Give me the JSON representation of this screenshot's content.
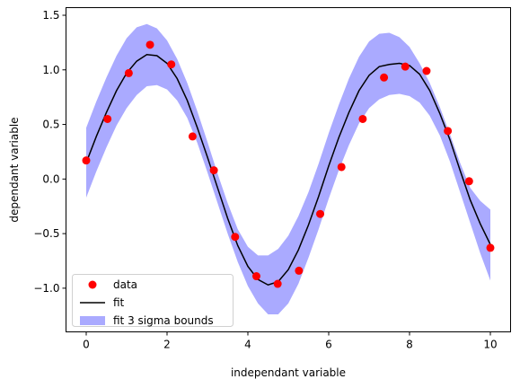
{
  "chart_data": {
    "type": "line",
    "title": "",
    "xlabel": "independant variable",
    "ylabel": "dependant variable",
    "xlim": [
      -0.5,
      10.5
    ],
    "ylim": [
      -1.4,
      1.57
    ],
    "xticks": [
      0,
      2,
      4,
      6,
      8,
      10
    ],
    "xtick_labels": [
      "0",
      "2",
      "4",
      "6",
      "8",
      "10"
    ],
    "yticks": [
      -1.0,
      -0.5,
      0.0,
      0.5,
      1.0,
      1.5
    ],
    "ytick_labels": [
      "−1.0",
      "−0.5",
      "0.0",
      "0.5",
      "1.0",
      "1.5"
    ],
    "grid": false,
    "legend_position": "lower-left",
    "series": [
      {
        "name": "data",
        "kind": "scatter",
        "color": "#ff0000",
        "x": [
          0,
          0.5263,
          1.0526,
          1.5789,
          2.1053,
          2.6316,
          3.1579,
          3.6842,
          4.2105,
          4.7368,
          5.2632,
          5.7895,
          6.3158,
          6.8421,
          7.3684,
          7.8947,
          8.4211,
          8.9474,
          9.4737,
          10.0
        ],
        "y": [
          0.17,
          0.55,
          0.97,
          1.23,
          1.05,
          0.39,
          0.08,
          -0.53,
          -0.89,
          -0.96,
          -0.84,
          -0.32,
          0.11,
          0.55,
          0.93,
          1.03,
          0.99,
          0.44,
          -0.02,
          -0.63
        ]
      },
      {
        "name": "fit",
        "kind": "line",
        "color": "#000000",
        "x": [
          0,
          0.25,
          0.5,
          0.75,
          1.0,
          1.25,
          1.5,
          1.75,
          2.0,
          2.25,
          2.5,
          2.75,
          3.0,
          3.25,
          3.5,
          3.75,
          4.0,
          4.25,
          4.5,
          4.75,
          5.0,
          5.25,
          5.5,
          5.75,
          6.0,
          6.25,
          6.5,
          6.75,
          7.0,
          7.25,
          7.5,
          7.75,
          8.0,
          8.25,
          8.5,
          8.75,
          9.0,
          9.25,
          9.5,
          9.75,
          10.0
        ],
        "y": [
          0.15,
          0.39,
          0.61,
          0.81,
          0.97,
          1.08,
          1.14,
          1.13,
          1.06,
          0.92,
          0.72,
          0.47,
          0.2,
          -0.08,
          -0.36,
          -0.61,
          -0.8,
          -0.92,
          -0.97,
          -0.94,
          -0.83,
          -0.65,
          -0.42,
          -0.16,
          0.12,
          0.38,
          0.61,
          0.81,
          0.95,
          1.03,
          1.05,
          1.06,
          1.04,
          0.96,
          0.81,
          0.6,
          0.36,
          0.08,
          -0.19,
          -0.41,
          -0.6
        ]
      },
      {
        "name": "fit 3 sigma bounds",
        "kind": "band",
        "color": "#aaaaff",
        "x": [
          0,
          0.25,
          0.5,
          0.75,
          1.0,
          1.25,
          1.5,
          1.75,
          2.0,
          2.25,
          2.5,
          2.75,
          3.0,
          3.25,
          3.5,
          3.75,
          4.0,
          4.25,
          4.5,
          4.75,
          5.0,
          5.25,
          5.5,
          5.75,
          6.0,
          6.25,
          6.5,
          6.75,
          7.0,
          7.25,
          7.5,
          7.75,
          8.0,
          8.25,
          8.5,
          8.75,
          9.0,
          9.25,
          9.5,
          9.75,
          10.0
        ],
        "upper": [
          0.47,
          0.71,
          0.93,
          1.13,
          1.29,
          1.39,
          1.42,
          1.38,
          1.27,
          1.1,
          0.88,
          0.62,
          0.34,
          0.05,
          -0.22,
          -0.46,
          -0.62,
          -0.7,
          -0.7,
          -0.64,
          -0.52,
          -0.34,
          -0.12,
          0.14,
          0.42,
          0.68,
          0.92,
          1.12,
          1.26,
          1.33,
          1.34,
          1.3,
          1.21,
          1.06,
          0.88,
          0.66,
          0.41,
          0.15,
          -0.08,
          -0.2,
          -0.28
        ],
        "lower": [
          -0.17,
          0.07,
          0.29,
          0.49,
          0.65,
          0.77,
          0.85,
          0.86,
          0.82,
          0.72,
          0.56,
          0.33,
          0.06,
          -0.22,
          -0.5,
          -0.76,
          -0.98,
          -1.14,
          -1.24,
          -1.24,
          -1.14,
          -0.96,
          -0.72,
          -0.46,
          -0.18,
          0.08,
          0.31,
          0.51,
          0.65,
          0.73,
          0.77,
          0.78,
          0.76,
          0.7,
          0.58,
          0.4,
          0.16,
          -0.12,
          -0.4,
          -0.68,
          -0.93
        ]
      }
    ]
  }
}
